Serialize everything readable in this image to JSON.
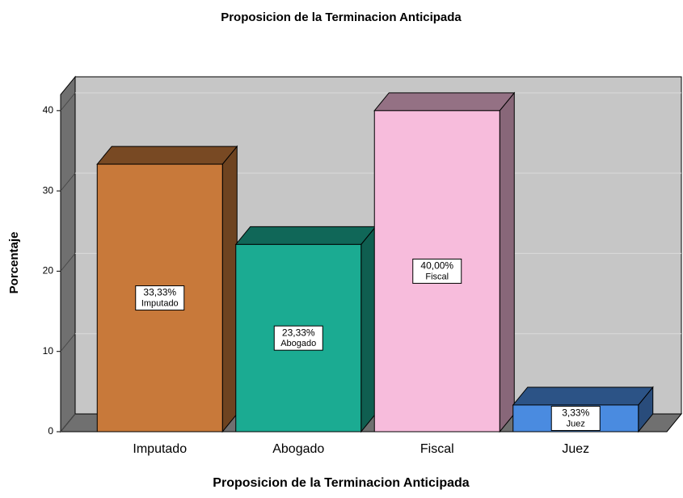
{
  "chart_data": {
    "type": "bar3d",
    "title": "Proposicion de la Terminacion Anticipada",
    "x_label": "Proposicion de la Terminacion Anticipada",
    "y_label": "Porcentaje",
    "categories": [
      "Imputado",
      "Abogado",
      "Fiscal",
      "Juez"
    ],
    "values": [
      33.33,
      23.33,
      40.0,
      3.33
    ],
    "value_labels": [
      "33,33%",
      "23,33%",
      "40,00%",
      "3,33%"
    ],
    "colors": [
      "#c8793a",
      "#1bab92",
      "#f7bcdc",
      "#4a8be0"
    ],
    "ylim": [
      0,
      42
    ],
    "yticks": [
      0,
      10,
      20,
      30,
      40
    ],
    "grid": true
  }
}
